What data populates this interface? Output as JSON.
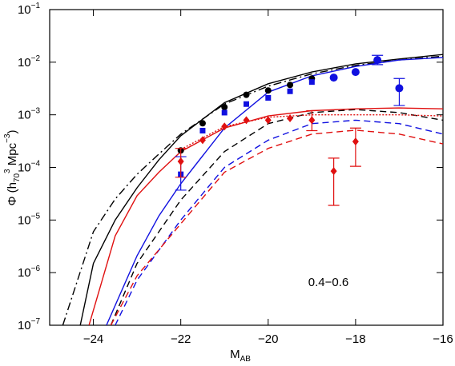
{
  "chart_data": {
    "type": "scatter",
    "xlabel": "MAB",
    "ylabel": "Φ (h703 Mpc−3)",
    "annotation": "0.4−0.6",
    "log_y": true,
    "xlim": [
      -25,
      -16
    ],
    "ylim": [
      1e-07,
      0.1
    ],
    "xticks": [
      {
        "value": -24,
        "label": "−24"
      },
      {
        "value": -22,
        "label": "−22"
      },
      {
        "value": -20,
        "label": "−20"
      },
      {
        "value": -18,
        "label": "−18"
      },
      {
        "value": -16,
        "label": "−16"
      }
    ],
    "yticks": [
      {
        "value": 1e-07,
        "label": "10−7"
      },
      {
        "value": 1e-06,
        "label": "10−6"
      },
      {
        "value": 1e-05,
        "label": "10−5"
      },
      {
        "value": 0.0001,
        "label": "10−4"
      },
      {
        "value": 0.001,
        "label": "10−3"
      },
      {
        "value": 0.01,
        "label": "10−2"
      },
      {
        "value": 0.1,
        "label": "10−1"
      }
    ],
    "series": [
      {
        "kind": "line",
        "style": "solid",
        "color": "#000000",
        "x": [
          -24.3,
          -24,
          -23.5,
          -23,
          -22.5,
          -22,
          -21,
          -20,
          -19,
          -18,
          -17,
          -16
        ],
        "values": [
          1e-07,
          1.5e-06,
          1e-05,
          4.1e-05,
          0.00014,
          0.0004,
          0.0017,
          0.0039,
          0.0065,
          0.0093,
          0.0115,
          0.014
        ]
      },
      {
        "kind": "line",
        "style": "dashdot",
        "color": "#000000",
        "x": [
          -24.7,
          -24,
          -23.5,
          -23,
          -22.5,
          -22,
          -21,
          -20,
          -19,
          -18,
          -17,
          -16
        ],
        "values": [
          1e-07,
          6e-06,
          2.5e-05,
          7.4e-05,
          0.00018,
          0.00043,
          0.0016,
          0.0035,
          0.006,
          0.0087,
          0.011,
          0.013
        ]
      },
      {
        "kind": "line",
        "style": "dashed",
        "color": "#000000",
        "x": [
          -23.6,
          -23,
          -22,
          -21,
          -20,
          -19,
          -18,
          -17,
          -16
        ],
        "values": [
          1e-07,
          1.5e-06,
          2.4e-05,
          0.0002,
          0.00068,
          0.0011,
          0.00126,
          0.0011,
          0.00079
        ]
      },
      {
        "kind": "line",
        "style": "solid",
        "color": "#1010e0",
        "x": [
          -23.7,
          -23,
          -22.5,
          -22,
          -21,
          -20,
          -19,
          -18,
          -17,
          -16
        ],
        "values": [
          1e-07,
          2.1e-06,
          1.2e-05,
          4.9e-05,
          0.00056,
          0.0027,
          0.0055,
          0.0083,
          0.011,
          0.0123
        ]
      },
      {
        "kind": "line",
        "style": "dashed",
        "color": "#1010e0",
        "x": [
          -23.5,
          -23,
          -22,
          -21,
          -20,
          -19,
          -18,
          -17,
          -16
        ],
        "values": [
          1e-07,
          7.2e-07,
          1e-05,
          0.0001,
          0.00033,
          0.00068,
          0.00079,
          0.00068,
          0.00043
        ]
      },
      {
        "kind": "line",
        "style": "solid",
        "color": "#e01010",
        "x": [
          -24.1,
          -23.5,
          -23,
          -22.5,
          -22,
          -21,
          -20,
          -19,
          -18,
          -17,
          -16
        ],
        "values": [
          1e-07,
          5e-06,
          2.9e-05,
          8.1e-05,
          0.0002,
          0.00056,
          0.00095,
          0.0012,
          0.0013,
          0.00135,
          0.0013
        ]
      },
      {
        "kind": "line",
        "style": "dotted",
        "color": "#e01010",
        "x": [
          -22,
          -21,
          -20,
          -19,
          -18,
          -17,
          -16
        ],
        "values": [
          0.00022,
          0.0006,
          0.0009,
          0.001,
          0.001,
          0.001,
          0.00095
        ]
      },
      {
        "kind": "line",
        "style": "dashed",
        "color": "#e01010",
        "x": [
          -23.6,
          -23,
          -22,
          -21,
          -20,
          -19,
          -18,
          -17,
          -16
        ],
        "values": [
          1e-07,
          8.7e-07,
          8.5e-06,
          8.1e-05,
          0.00023,
          0.00043,
          0.00051,
          0.00043,
          0.00028
        ]
      },
      {
        "kind": "points",
        "marker": "circle",
        "color": "#000000",
        "x": [
          -22,
          -21.5,
          -21,
          -20.5,
          -20,
          -19.5,
          -19,
          -18
        ],
        "values": [
          0.00021,
          0.00069,
          0.0014,
          0.0024,
          0.0029,
          0.0037,
          0.0049,
          0.0065
        ],
        "ylow": [
          null,
          null,
          null,
          null,
          null,
          null,
          null,
          null
        ],
        "yhigh": [
          null,
          null,
          null,
          null,
          null,
          null,
          null,
          null
        ]
      },
      {
        "kind": "points",
        "marker": "square",
        "color": "#1010e0",
        "x": [
          -22,
          -21.5,
          -21,
          -20.5,
          -20,
          -19.5,
          -19
        ],
        "values": [
          7.4e-05,
          0.0005,
          0.0011,
          0.0016,
          0.0021,
          0.0028,
          0.0042
        ],
        "ylow": [
          3.7e-05,
          null,
          null,
          null,
          null,
          null,
          null
        ],
        "yhigh": [
          0.00016,
          null,
          null,
          null,
          null,
          null,
          null
        ]
      },
      {
        "kind": "points",
        "marker": "circle",
        "color": "#1010e0",
        "x": [
          -18.5,
          -18,
          -17.5,
          -17
        ],
        "values": [
          0.0051,
          0.0065,
          0.011,
          0.0032
        ],
        "ylow": [
          null,
          null,
          0.009,
          0.0015
        ],
        "yhigh": [
          null,
          null,
          0.0135,
          0.0049
        ]
      },
      {
        "kind": "points",
        "marker": "diamond",
        "color": "#e01010",
        "x": [
          -22,
          -21.5,
          -21,
          -20.5,
          -20,
          -19.5,
          -19,
          -18.5,
          -18
        ],
        "values": [
          0.00013,
          0.00033,
          0.0006,
          0.00079,
          0.00079,
          0.00086,
          0.00079,
          8.5e-05,
          0.00031
        ],
        "ylow": [
          6.5e-05,
          null,
          null,
          null,
          null,
          null,
          0.0005,
          1.9e-05,
          0.000105
        ],
        "yhigh": [
          0.00023,
          null,
          null,
          null,
          null,
          null,
          0.0012,
          0.00015,
          0.00056
        ]
      }
    ]
  }
}
